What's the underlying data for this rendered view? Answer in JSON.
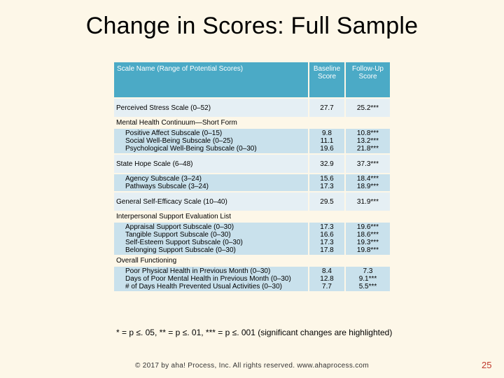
{
  "title": "Change in Scores: Full Sample",
  "headers": {
    "name": "Scale Name (Range of Potential Scores)",
    "baseline": "Baseline Score",
    "followup": "Follow-Up Score"
  },
  "rows": {
    "pss": {
      "label": "Perceived Stress Scale (0–52)",
      "base": "27.7",
      "fol": "25.2***"
    },
    "mhc": {
      "label": "Mental Health Continuum—Short Form"
    },
    "mhc_subs": {
      "labels": [
        "Positive Affect Subscale (0–15)",
        "Social Well-Being Subscale (0–25)",
        "Psychological Well-Being Subscale (0–30)"
      ],
      "base": [
        "9.8",
        "11.1",
        "19.6"
      ],
      "fol": [
        "10.8***",
        "13.2***",
        "21.8***"
      ]
    },
    "hope": {
      "label": "State Hope Scale (6–48)",
      "base": "32.9",
      "fol": "37.3***"
    },
    "hope_subs": {
      "labels": [
        "Agency Subscale (3–24)",
        "Pathways Subscale (3–24)"
      ],
      "base": [
        "15.6",
        "17.3"
      ],
      "fol": [
        "18.4***",
        "18.9***"
      ]
    },
    "gse": {
      "label": "General Self-Efficacy Scale (10–40)",
      "base": "29.5",
      "fol": "31.9***"
    },
    "isel": {
      "label": "Interpersonal Support Evaluation List"
    },
    "isel_subs": {
      "labels": [
        "Appraisal Support Subscale (0–30)",
        "Tangible Support Subscale (0–30)",
        "Self-Esteem Support Subscale (0–30)",
        "Belonging Support Subscale (0–30)"
      ],
      "base": [
        "17.3",
        "16.6",
        "17.3",
        "17.8"
      ],
      "fol": [
        "19.6***",
        "18.6***",
        "19.3***",
        "19.8***"
      ]
    },
    "of": {
      "label": "Overall Functioning"
    },
    "of_subs": {
      "labels": [
        "Poor Physical Health in Previous Month (0–30)",
        "Days of Poor Mental Health in Previous Month (0–30)",
        "# of Days Health Prevented Usual Activities (0–30)"
      ],
      "base": [
        "8.4",
        "12.8",
        "7.7"
      ],
      "fol": [
        "7.3",
        "9.1***",
        "5.5***"
      ]
    }
  },
  "note": "* = p ≤. 05, ** = p ≤. 01, *** = p ≤. 001 (significant changes are highlighted)",
  "footer": "© 2017 by aha! Process, Inc. All rights reserved. www.ahaprocess.com",
  "page_number": "25"
}
